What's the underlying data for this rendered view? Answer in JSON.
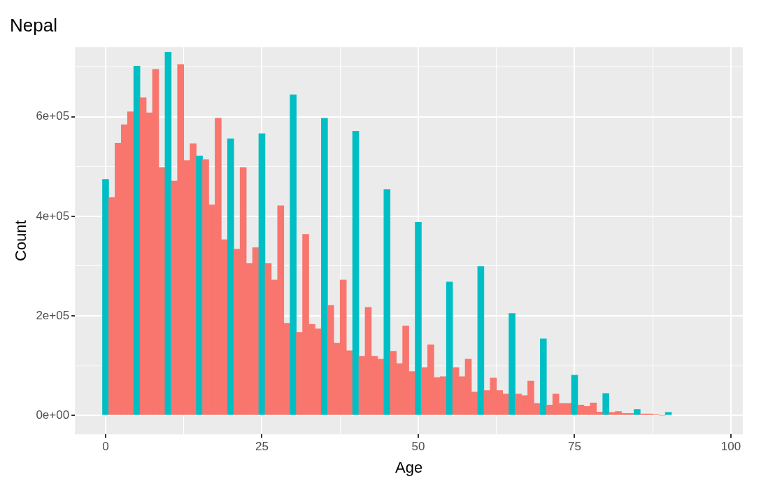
{
  "chart_data": {
    "type": "histogram",
    "title": "Nepal",
    "xlabel": "Age",
    "ylabel": "Count",
    "bins": [
      -0.5,
      0.5,
      1.5,
      2.5,
      3.5,
      4.5,
      5.5,
      6.5,
      7.5,
      8.5,
      9.5,
      10.5,
      11.5,
      12.5,
      13.5,
      14.5,
      15.5,
      16.5,
      17.5,
      18.5,
      19.5,
      20.5,
      21.5,
      22.5,
      23.5,
      24.5,
      25.5,
      26.5,
      27.5,
      28.5,
      29.5,
      30.5,
      31.5,
      32.5,
      33.5,
      34.5,
      35.5,
      36.5,
      37.5,
      38.5,
      39.5,
      40.5,
      41.5,
      42.5,
      43.5,
      44.5,
      45.5,
      46.5,
      47.5,
      48.5,
      49.5,
      50.5,
      51.5,
      52.5,
      53.5,
      54.5,
      55.5,
      56.5,
      57.5,
      58.5,
      59.5,
      60.5,
      61.5,
      62.5,
      63.5,
      64.5,
      65.5,
      66.5,
      67.5,
      68.5,
      69.5,
      70.5,
      71.5,
      72.5,
      73.5,
      74.5,
      75.5,
      76.5,
      77.5,
      78.5,
      79.5,
      80.5,
      81.5,
      82.5,
      83.5,
      84.5,
      85.5,
      86.5,
      87.5,
      88.5,
      89.5,
      90.5
    ],
    "values": [
      474000,
      438000,
      547000,
      584000,
      610000,
      702000,
      638000,
      608000,
      695000,
      498000,
      730000,
      471000,
      705000,
      512000,
      546000,
      521000,
      514000,
      423000,
      597000,
      353000,
      556000,
      334000,
      498000,
      305000,
      337000,
      566000,
      305000,
      272000,
      421000,
      185000,
      644000,
      167000,
      364000,
      183000,
      174000,
      597000,
      221000,
      145000,
      272000,
      130000,
      571000,
      119000,
      217000,
      119000,
      113000,
      454000,
      129000,
      104000,
      180000,
      88000,
      388000,
      96000,
      142000,
      76000,
      78000,
      268000,
      96000,
      78000,
      113000,
      47000,
      299000,
      50000,
      75000,
      50000,
      43000,
      205000,
      43000,
      40000,
      69000,
      24000,
      154000,
      21000,
      43000,
      24000,
      24000,
      81000,
      21000,
      18000,
      25000,
      7000,
      44000,
      6000,
      8000,
      4000,
      4000,
      12000,
      3000,
      3000,
      2000,
      0,
      6000
    ],
    "colors": [
      "#00bfc4",
      "#f8766d",
      "#f8766d",
      "#f8766d",
      "#f8766d",
      "#00bfc4",
      "#f8766d",
      "#f8766d",
      "#f8766d",
      "#f8766d",
      "#00bfc4",
      "#f8766d",
      "#f8766d",
      "#f8766d",
      "#f8766d",
      "#00bfc4",
      "#f8766d",
      "#f8766d",
      "#f8766d",
      "#f8766d",
      "#00bfc4",
      "#f8766d",
      "#f8766d",
      "#f8766d",
      "#f8766d",
      "#00bfc4",
      "#f8766d",
      "#f8766d",
      "#f8766d",
      "#f8766d",
      "#00bfc4",
      "#f8766d",
      "#f8766d",
      "#f8766d",
      "#f8766d",
      "#00bfc4",
      "#f8766d",
      "#f8766d",
      "#f8766d",
      "#f8766d",
      "#00bfc4",
      "#f8766d",
      "#f8766d",
      "#f8766d",
      "#f8766d",
      "#00bfc4",
      "#f8766d",
      "#f8766d",
      "#f8766d",
      "#f8766d",
      "#00bfc4",
      "#f8766d",
      "#f8766d",
      "#f8766d",
      "#f8766d",
      "#00bfc4",
      "#f8766d",
      "#f8766d",
      "#f8766d",
      "#f8766d",
      "#00bfc4",
      "#f8766d",
      "#f8766d",
      "#f8766d",
      "#f8766d",
      "#00bfc4",
      "#f8766d",
      "#f8766d",
      "#f8766d",
      "#f8766d",
      "#00bfc4",
      "#f8766d",
      "#f8766d",
      "#f8766d",
      "#f8766d",
      "#00bfc4",
      "#f8766d",
      "#f8766d",
      "#f8766d",
      "#f8766d",
      "#00bfc4",
      "#f8766d",
      "#f8766d",
      "#f8766d",
      "#f8766d",
      "#00bfc4",
      "#f8766d",
      "#f8766d",
      "#f8766d",
      "#f8766d",
      "#00bfc4"
    ],
    "xlim": [
      -4.9,
      101.9
    ],
    "xticks": [
      0,
      {
        "value": 12.5,
        "label": null
      },
      25,
      {
        "value": 37.5,
        "label": null
      },
      50,
      {
        "value": 62.5,
        "label": null
      },
      75,
      {
        "value": 87.5,
        "label": null
      },
      100
    ],
    "ylim": [
      -38000,
      740000
    ],
    "yticks": [
      {
        "value": 0,
        "label": "0e+00"
      },
      {
        "value": 100000,
        "label": null
      },
      {
        "value": 200000,
        "label": "2e+05"
      },
      {
        "value": 300000,
        "label": null
      },
      {
        "value": 400000,
        "label": "4e+05"
      },
      {
        "value": 500000,
        "label": null
      },
      {
        "value": 600000,
        "label": "6e+05"
      },
      {
        "value": 700000,
        "label": null
      }
    ],
    "grid": true,
    "legend": false
  }
}
